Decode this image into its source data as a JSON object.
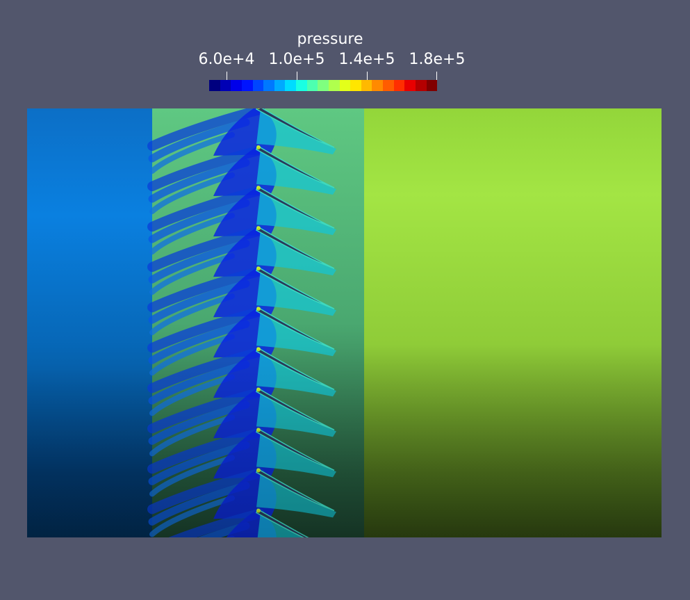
{
  "colorbar": {
    "title": "pressure",
    "ticks": [
      "6.0e+4",
      "1.0e+5",
      "1.4e+5",
      "1.8e+5"
    ],
    "colors": [
      "#00007f",
      "#0000b5",
      "#0000ea",
      "#0014ff",
      "#0046ff",
      "#0078ff",
      "#00aaff",
      "#00dcff",
      "#1affe3",
      "#4dffb0",
      "#7fff7f",
      "#b0ff4d",
      "#e3ff1a",
      "#ffe600",
      "#ffb900",
      "#ff8a00",
      "#ff5c00",
      "#ff2e00",
      "#e80000",
      "#b40000",
      "#800000"
    ]
  },
  "scene": {
    "background": "#52566c",
    "inlet_color": "#0a7ad8",
    "outlet_color": "#a3e544",
    "blade_count": 11
  }
}
